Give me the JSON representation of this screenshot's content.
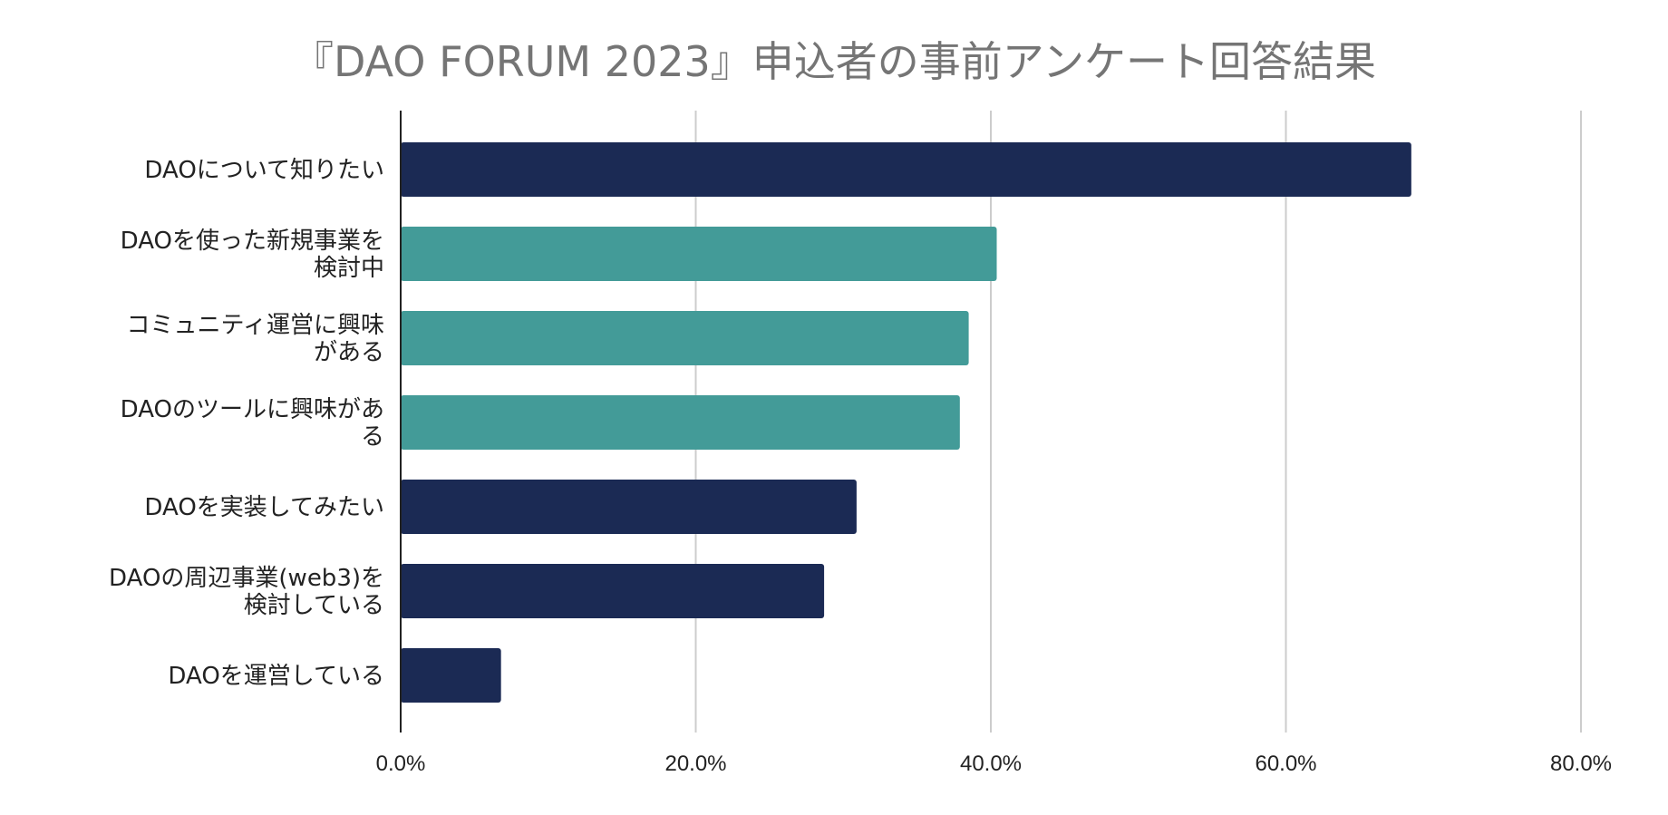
{
  "chart_data": {
    "type": "bar",
    "orientation": "horizontal",
    "title": "『DAO FORUM 2023』申込者の事前アンケート回答結果",
    "xlabel": "",
    "ylabel": "",
    "xlim": [
      0,
      80
    ],
    "x_ticks": [
      0,
      20,
      40,
      60,
      80
    ],
    "x_tick_labels": [
      "0.0%",
      "20.0%",
      "40.0%",
      "60.0%",
      "80.0%"
    ],
    "grid": true,
    "legend": "none",
    "categories": [
      [
        "DAOについて知りたい"
      ],
      [
        "DAOを使った新規事業を",
        "検討中"
      ],
      [
        "コミュニティ運営に興味",
        "がある"
      ],
      [
        "DAOのツールに興味があ",
        "る"
      ],
      [
        "DAOを実装してみたい"
      ],
      [
        "DAOの周辺事業(web3)を",
        "検討している"
      ],
      [
        "DAOを運営している"
      ]
    ],
    "values": [
      68.5,
      40.4,
      38.5,
      37.9,
      30.9,
      28.7,
      6.8
    ],
    "unit": "%",
    "bar_colors": [
      "#1b2a54",
      "#439b98",
      "#439b98",
      "#439b98",
      "#1b2a54",
      "#1b2a54",
      "#1b2a54"
    ]
  }
}
